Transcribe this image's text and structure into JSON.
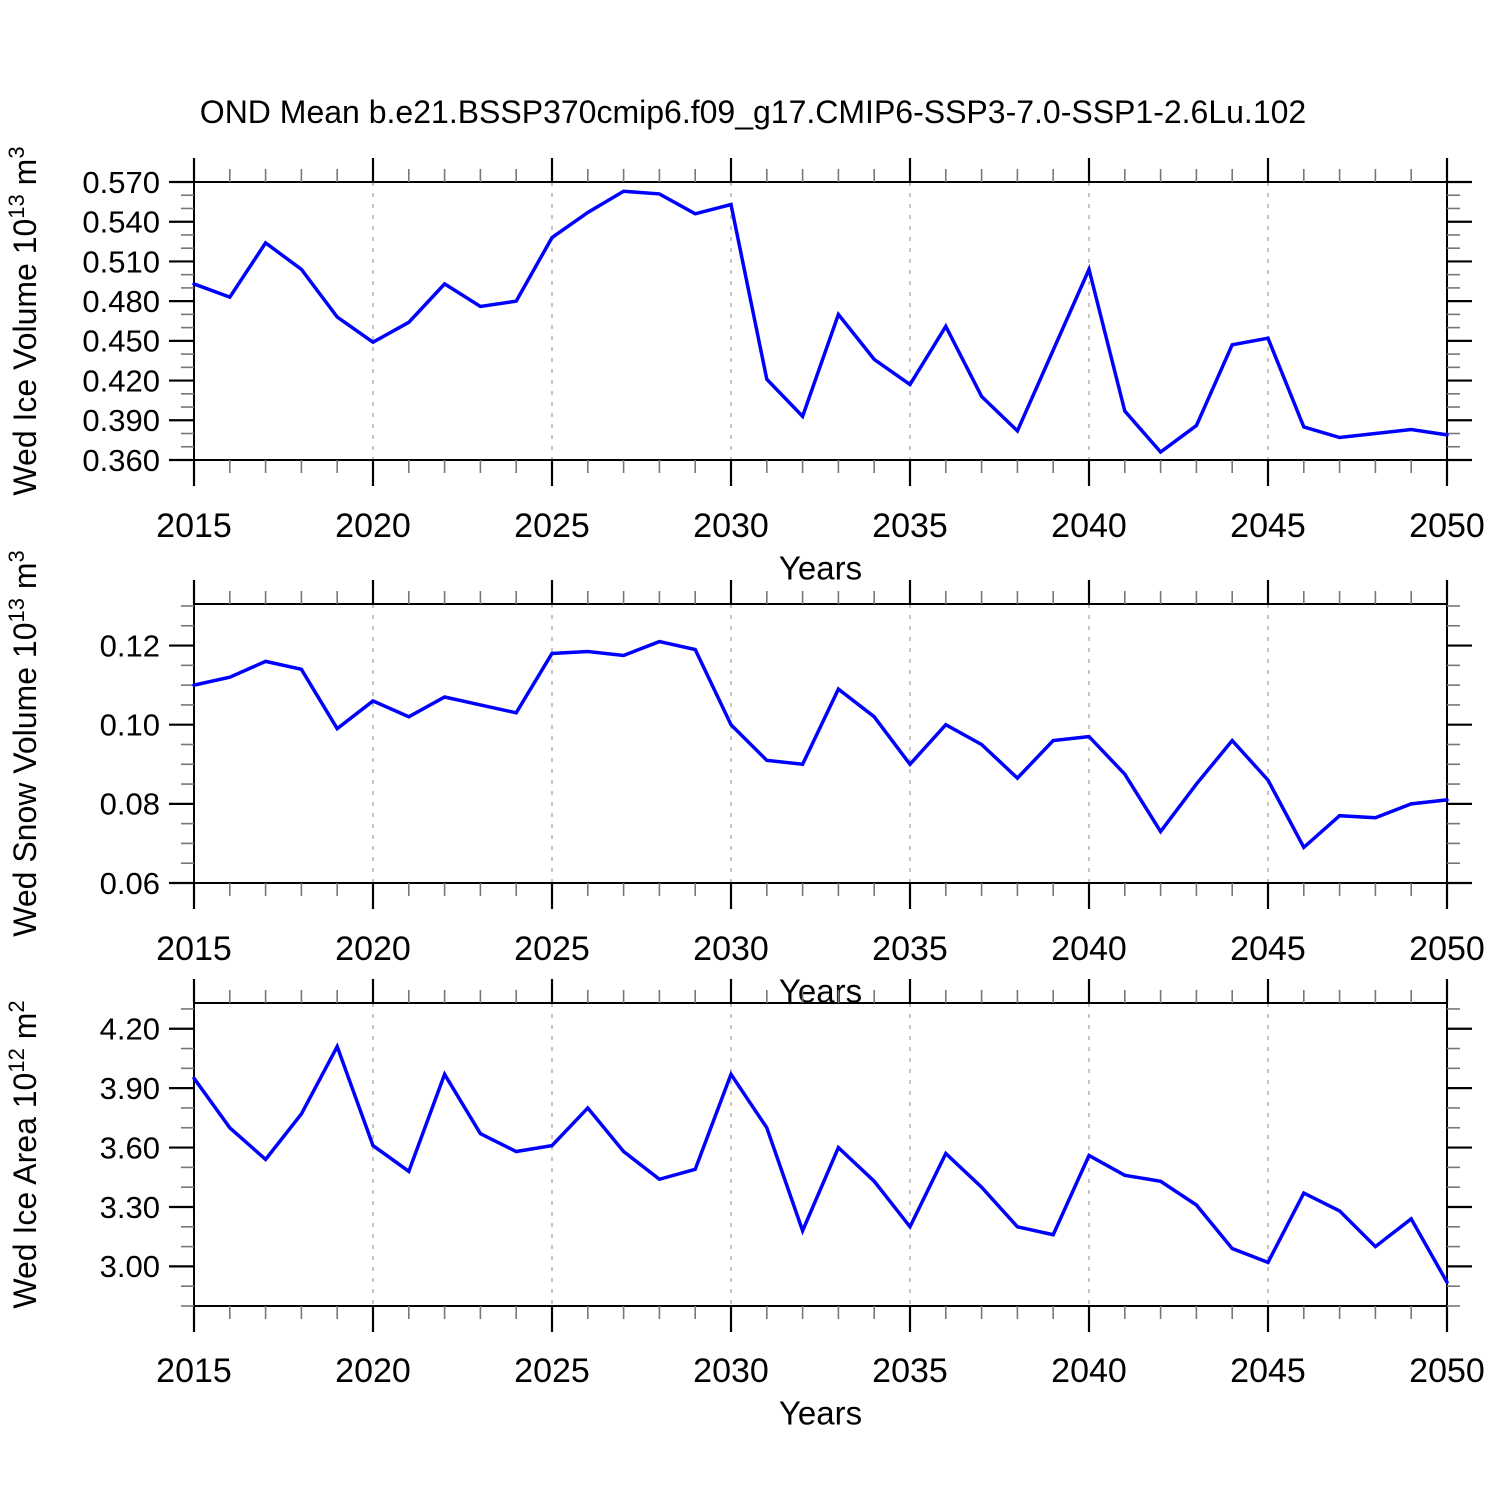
{
  "title": "OND Mean b.e21.BSSP370cmip6.f09_g17.CMIP6-SSP3-7.0-SSP1-2.6Lu.102",
  "colors": {
    "line": "#0000ff",
    "axis": "#000000",
    "minor_tick": "#777777",
    "gridline": "#b0b0b0",
    "text": "#000000",
    "background": "#ffffff"
  },
  "x_axis": {
    "title": "Years",
    "range": [
      2015,
      2050
    ],
    "major_ticks": [
      2015,
      2020,
      2025,
      2030,
      2035,
      2040,
      2045,
      2050
    ],
    "tick_labels": [
      "2015",
      "2020",
      "2025",
      "2030",
      "2035",
      "2040",
      "2045",
      "2050"
    ],
    "minor_step": 1,
    "gridlines": [
      2020,
      2025,
      2030,
      2035,
      2040,
      2045
    ]
  },
  "years": [
    2015,
    2016,
    2017,
    2018,
    2019,
    2020,
    2021,
    2022,
    2023,
    2024,
    2025,
    2026,
    2027,
    2028,
    2029,
    2030,
    2031,
    2032,
    2033,
    2034,
    2035,
    2036,
    2037,
    2038,
    2039,
    2040,
    2041,
    2042,
    2043,
    2044,
    2045,
    2046,
    2047,
    2048,
    2049,
    2050
  ],
  "chart_data": [
    {
      "type": "line",
      "name": "wed-ice-volume",
      "ylabel": "Wed Ice Volume 10^13 m^3",
      "ylabel_segments": [
        {
          "text": "Wed Ice Volume 10",
          "sup": false
        },
        {
          "text": "13",
          "sup": true
        },
        {
          "text": " m",
          "sup": false
        },
        {
          "text": "3",
          "sup": true
        }
      ],
      "ylim": [
        0.36,
        0.57
      ],
      "ytick_values": [
        0.36,
        0.39,
        0.42,
        0.45,
        0.48,
        0.51,
        0.54,
        0.57
      ],
      "ytick_labels": [
        "0.360",
        "0.390",
        "0.420",
        "0.450",
        "0.480",
        "0.510",
        "0.540",
        "0.570"
      ],
      "yminor_step": 0.01,
      "grid": "dashed-vertical",
      "legend": "none",
      "values": [
        0.493,
        0.483,
        0.524,
        0.504,
        0.468,
        0.449,
        0.464,
        0.493,
        0.476,
        0.48,
        0.528,
        0.547,
        0.563,
        0.561,
        0.546,
        0.553,
        0.421,
        0.393,
        0.47,
        0.436,
        0.417,
        0.461,
        0.408,
        0.382,
        0.443,
        0.504,
        0.397,
        0.366,
        0.386,
        0.447,
        0.452,
        0.385,
        0.377,
        0.38,
        0.383,
        0.379
      ]
    },
    {
      "type": "line",
      "name": "wed-snow-volume",
      "ylabel": "Wed Snow Volume 10^13 m^3",
      "ylabel_segments": [
        {
          "text": "Wed Snow Volume 10",
          "sup": false
        },
        {
          "text": "13",
          "sup": true
        },
        {
          "text": " m",
          "sup": false
        },
        {
          "text": "3",
          "sup": true
        }
      ],
      "ylim": [
        0.06,
        0.1305
      ],
      "ytick_values": [
        0.06,
        0.08,
        0.1,
        0.12
      ],
      "ytick_labels": [
        "0.06",
        "0.08",
        "0.10",
        "0.12"
      ],
      "yminor_step": 0.005,
      "grid": "dashed-vertical",
      "legend": "none",
      "values": [
        0.11,
        0.112,
        0.116,
        0.114,
        0.099,
        0.106,
        0.102,
        0.107,
        0.105,
        0.103,
        0.118,
        0.1185,
        0.1175,
        0.121,
        0.119,
        0.1,
        0.091,
        0.09,
        0.109,
        0.102,
        0.09,
        0.1,
        0.095,
        0.0865,
        0.096,
        0.097,
        0.0875,
        0.073,
        0.085,
        0.096,
        0.086,
        0.069,
        0.077,
        0.0765,
        0.08,
        0.081
      ]
    },
    {
      "type": "line",
      "name": "wed-ice-area",
      "ylabel": "Wed Ice Area 10^12 m^2",
      "ylabel_segments": [
        {
          "text": "Wed Ice Area 10",
          "sup": false
        },
        {
          "text": "12",
          "sup": true
        },
        {
          "text": " m",
          "sup": false
        },
        {
          "text": "2",
          "sup": true
        }
      ],
      "ylim": [
        2.8,
        4.33
      ],
      "ytick_values": [
        3.0,
        3.3,
        3.6,
        3.9,
        4.2
      ],
      "ytick_labels": [
        "3.00",
        "3.30",
        "3.60",
        "3.90",
        "4.20"
      ],
      "yminor_step": 0.1,
      "grid": "dashed-vertical",
      "legend": "none",
      "values": [
        3.95,
        3.7,
        3.54,
        3.77,
        4.11,
        3.61,
        3.48,
        3.97,
        3.67,
        3.58,
        3.61,
        3.8,
        3.58,
        3.44,
        3.49,
        3.97,
        3.7,
        3.18,
        3.6,
        3.43,
        3.2,
        3.57,
        3.4,
        3.2,
        3.16,
        3.56,
        3.46,
        3.43,
        3.31,
        3.09,
        3.02,
        3.37,
        3.28,
        3.1,
        3.24,
        2.92
      ]
    }
  ]
}
